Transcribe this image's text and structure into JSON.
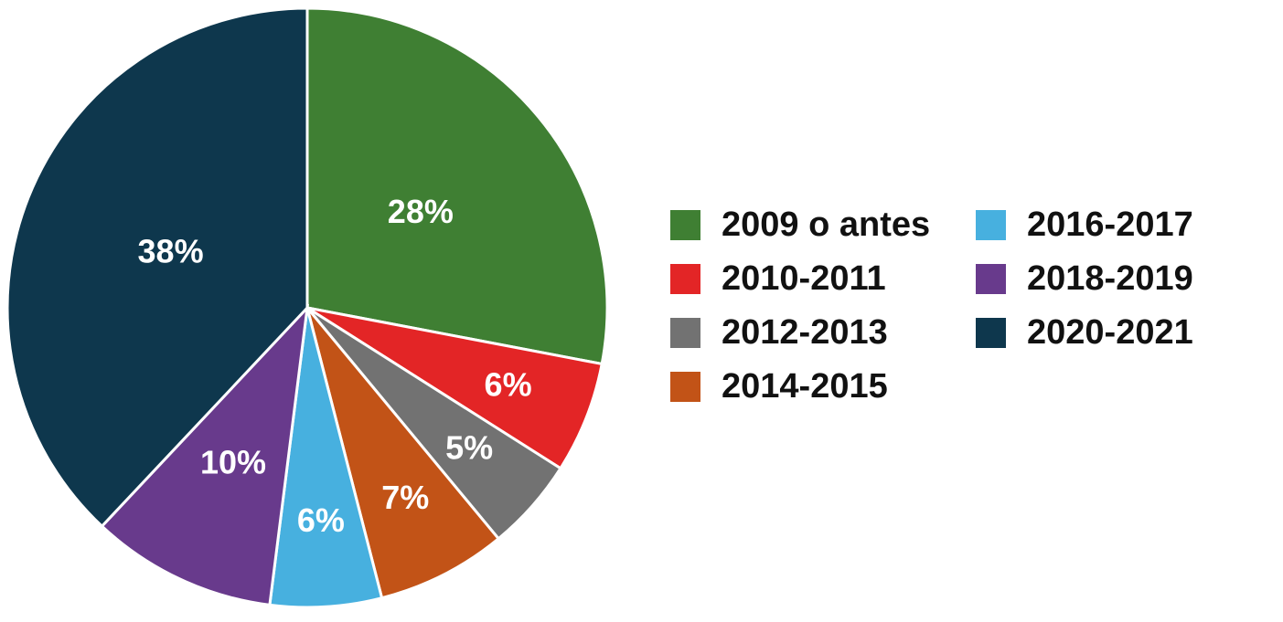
{
  "chart_data": {
    "type": "pie",
    "categories": [
      "2009 o antes",
      "2010-2011",
      "2012-2013",
      "2014-2015",
      "2016-2017",
      "2018-2019",
      "2020-2021"
    ],
    "values": [
      28,
      6,
      5,
      7,
      6,
      10,
      38
    ],
    "value_labels": [
      "28%",
      "6%",
      "5%",
      "7%",
      "6%",
      "10%",
      "38%"
    ],
    "colors": [
      "#3f7f33",
      "#e32526",
      "#727272",
      "#c25317",
      "#47b0df",
      "#683a8c",
      "#0e374d"
    ],
    "legend": "right"
  }
}
